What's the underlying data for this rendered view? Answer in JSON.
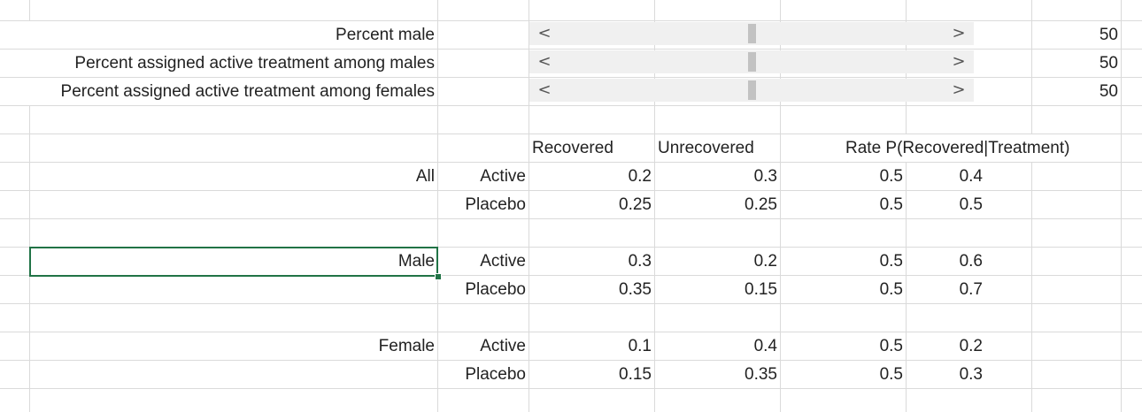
{
  "controls": [
    {
      "label": "Percent male",
      "value": "50",
      "scroll_position": 0.5
    },
    {
      "label": "Percent assigned active treatment among males",
      "value": "50",
      "scroll_position": 0.5
    },
    {
      "label": "Percent assigned active treatment among females",
      "value": "50",
      "scroll_position": 0.5
    }
  ],
  "scrollbar": {
    "left_glyph": "<",
    "right_glyph": ">"
  },
  "table": {
    "headers": {
      "recovered": "Recovered",
      "unrecovered": "Unrecovered",
      "rate": "Rate P(Recovered|Treatment)"
    },
    "groups": [
      {
        "name": "All",
        "rows": [
          {
            "treatment": "Active",
            "recovered": "0.2",
            "unrecovered": "0.3",
            "share": "0.5",
            "rate": "0.4"
          },
          {
            "treatment": "Placebo",
            "recovered": "0.25",
            "unrecovered": "0.25",
            "share": "0.5",
            "rate": "0.5"
          }
        ]
      },
      {
        "name": "Male",
        "rows": [
          {
            "treatment": "Active",
            "recovered": "0.3",
            "unrecovered": "0.2",
            "share": "0.5",
            "rate": "0.6"
          },
          {
            "treatment": "Placebo",
            "recovered": "0.35",
            "unrecovered": "0.15",
            "share": "0.5",
            "rate": "0.7"
          }
        ]
      },
      {
        "name": "Female",
        "rows": [
          {
            "treatment": "Active",
            "recovered": "0.1",
            "unrecovered": "0.4",
            "share": "0.5",
            "rate": "0.2"
          },
          {
            "treatment": "Placebo",
            "recovered": "0.15",
            "unrecovered": "0.35",
            "share": "0.5",
            "rate": "0.3"
          }
        ]
      }
    ]
  },
  "colors": {
    "gridline": "#dadada",
    "selection": "#217346",
    "scroll_track": "#f0f0f0",
    "scroll_thumb": "#c2c2c2"
  }
}
